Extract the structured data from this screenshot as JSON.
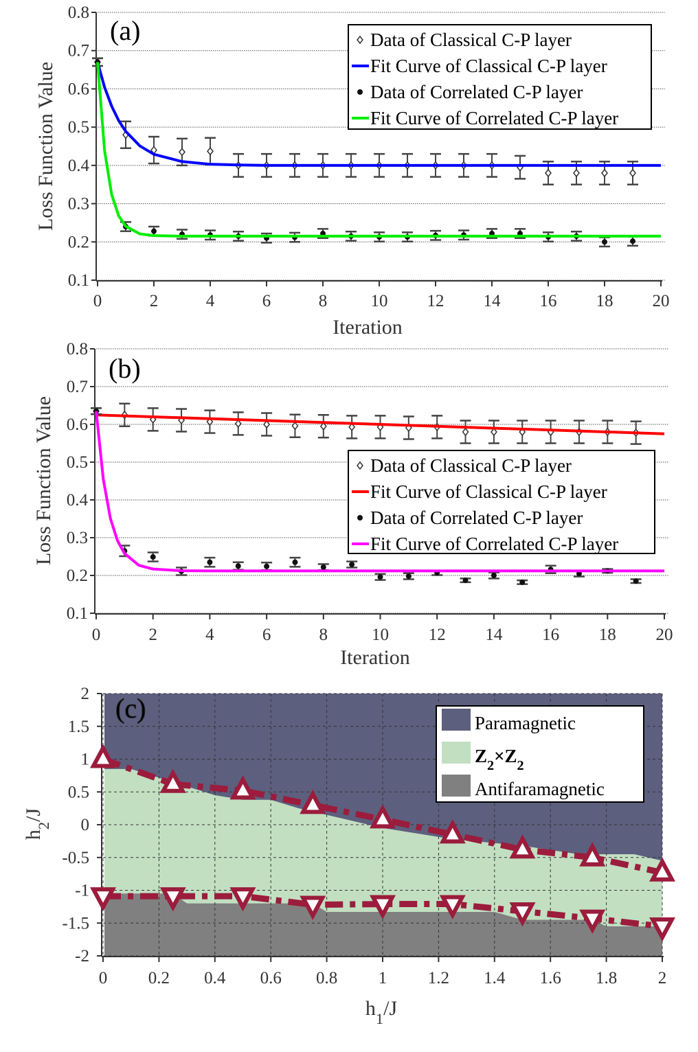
{
  "chart_data": [
    {
      "type": "scatter",
      "panel_label": "(a)",
      "xlabel": "Iteration",
      "ylabel": "Loss Function Value",
      "xlim": [
        0,
        20
      ],
      "ylim": [
        0.1,
        0.8
      ],
      "xticks": [
        0,
        2,
        4,
        6,
        8,
        10,
        12,
        14,
        16,
        18,
        20
      ],
      "yticks": [
        0.1,
        0.2,
        0.3,
        0.4,
        0.5,
        0.6,
        0.7,
        0.8
      ],
      "grid": "horizontal dotted",
      "legend_position": "top-right",
      "series": [
        {
          "name": "Data of Classical C-P layer",
          "kind": "points",
          "marker": "open-diamond",
          "x": [
            0,
            1,
            2,
            3,
            4,
            5,
            6,
            7,
            8,
            9,
            10,
            11,
            12,
            13,
            14,
            15,
            16,
            17,
            18,
            19
          ],
          "y": [
            0.67,
            0.48,
            0.44,
            0.435,
            0.437,
            0.4,
            0.4,
            0.4,
            0.4,
            0.4,
            0.4,
            0.4,
            0.4,
            0.4,
            0.4,
            0.395,
            0.38,
            0.38,
            0.38,
            0.38
          ],
          "err": [
            0.01,
            0.035,
            0.035,
            0.035,
            0.035,
            0.03,
            0.03,
            0.03,
            0.03,
            0.03,
            0.03,
            0.03,
            0.03,
            0.03,
            0.03,
            0.03,
            0.03,
            0.03,
            0.03,
            0.03
          ]
        },
        {
          "name": "Fit Curve of Classical C-P layer",
          "kind": "line",
          "color": "#0000ff",
          "x": [
            0,
            0.25,
            0.5,
            0.75,
            1,
            1.5,
            2,
            3,
            4,
            5,
            6,
            8,
            20
          ],
          "y": [
            0.67,
            0.604,
            0.555,
            0.517,
            0.489,
            0.451,
            0.429,
            0.41,
            0.403,
            0.401,
            0.4,
            0.4,
            0.4
          ]
        },
        {
          "name": "Data of Correlated C-P layer",
          "kind": "points",
          "marker": "filled-circle",
          "x": [
            0,
            1,
            2,
            3,
            4,
            5,
            6,
            7,
            8,
            9,
            10,
            11,
            12,
            13,
            14,
            15,
            16,
            17,
            18,
            19
          ],
          "y": [
            0.67,
            0.24,
            0.228,
            0.22,
            0.218,
            0.215,
            0.21,
            0.212,
            0.222,
            0.215,
            0.213,
            0.213,
            0.217,
            0.218,
            0.222,
            0.222,
            0.213,
            0.215,
            0.2,
            0.202
          ],
          "err": [
            0.01,
            0.012,
            0.012,
            0.012,
            0.012,
            0.012,
            0.012,
            0.012,
            0.012,
            0.012,
            0.012,
            0.012,
            0.012,
            0.012,
            0.012,
            0.012,
            0.012,
            0.012,
            0.012,
            0.012
          ]
        },
        {
          "name": "Fit Curve of Correlated C-P layer",
          "kind": "line",
          "color": "#00ee00",
          "x": [
            0,
            0.25,
            0.5,
            0.75,
            1,
            1.5,
            2,
            3,
            20
          ],
          "y": [
            0.67,
            0.438,
            0.324,
            0.268,
            0.241,
            0.221,
            0.2165,
            0.215,
            0.215
          ]
        }
      ]
    },
    {
      "type": "scatter",
      "panel_label": "(b)",
      "xlabel": "Iteration",
      "ylabel": "Loss Function Value",
      "xlim": [
        0,
        20
      ],
      "ylim": [
        0.1,
        0.8
      ],
      "xticks": [
        0,
        2,
        4,
        6,
        8,
        10,
        12,
        14,
        16,
        18,
        20
      ],
      "yticks": [
        0.1,
        0.2,
        0.3,
        0.4,
        0.5,
        0.6,
        0.7,
        0.8
      ],
      "grid": "horizontal dotted",
      "legend_position": "center-right",
      "series": [
        {
          "name": "Data of Classical C-P layer",
          "kind": "points",
          "marker": "open-diamond",
          "x": [
            0,
            1,
            2,
            3,
            4,
            5,
            6,
            7,
            8,
            9,
            10,
            11,
            12,
            13,
            14,
            15,
            16,
            17,
            18,
            19
          ],
          "y": [
            0.635,
            0.625,
            0.613,
            0.611,
            0.607,
            0.602,
            0.6,
            0.596,
            0.595,
            0.593,
            0.593,
            0.591,
            0.593,
            0.58,
            0.58,
            0.58,
            0.58,
            0.58,
            0.58,
            0.578
          ],
          "err": [
            0.008,
            0.03,
            0.03,
            0.03,
            0.03,
            0.03,
            0.03,
            0.03,
            0.03,
            0.03,
            0.03,
            0.03,
            0.03,
            0.03,
            0.03,
            0.03,
            0.03,
            0.03,
            0.03,
            0.03
          ]
        },
        {
          "name": "Fit Curve of Classical C-P layer",
          "kind": "line",
          "color": "#ff0000",
          "x": [
            0,
            20
          ],
          "y": [
            0.625,
            0.575
          ]
        },
        {
          "name": "Data of Correlated C-P layer",
          "kind": "points",
          "marker": "filled-circle",
          "x": [
            0,
            1,
            2,
            3,
            4,
            5,
            6,
            7,
            8,
            9,
            10,
            11,
            12,
            13,
            14,
            15,
            16,
            17,
            18,
            19
          ],
          "y": [
            0.635,
            0.265,
            0.249,
            0.211,
            0.235,
            0.225,
            0.224,
            0.235,
            0.222,
            0.229,
            0.196,
            0.198,
            0.207,
            0.187,
            0.2,
            0.182,
            0.216,
            0.205,
            0.212,
            0.185
          ],
          "err": [
            0.008,
            0.014,
            0.012,
            0.01,
            0.012,
            0.01,
            0.01,
            0.012,
            0.008,
            0.008,
            0.008,
            0.008,
            0.006,
            0.005,
            0.008,
            0.005,
            0.01,
            0.008,
            0.005,
            0.005
          ]
        },
        {
          "name": "Fit Curve of Correlated C-P layer",
          "kind": "line",
          "color": "#ff00ff",
          "x": [
            0,
            0.25,
            0.5,
            0.75,
            1,
            1.5,
            2,
            3,
            4,
            20
          ],
          "y": [
            0.635,
            0.455,
            0.351,
            0.292,
            0.258,
            0.227,
            0.217,
            0.2125,
            0.212,
            0.212
          ]
        }
      ]
    },
    {
      "type": "area",
      "panel_label": "(c)",
      "xlabel": "h_1/J",
      "ylabel": "h_2/J",
      "xlim": [
        0,
        2
      ],
      "ylim": [
        -2,
        2
      ],
      "xticks": [
        0,
        0.2,
        0.4,
        0.6,
        0.8,
        1,
        1.2,
        1.4,
        1.6,
        1.8,
        2
      ],
      "yticks": [
        -2,
        -1.5,
        -1,
        -0.5,
        0,
        0.5,
        1,
        1.5,
        2
      ],
      "grid": "dashed",
      "legend_position": "top-right",
      "regions": [
        {
          "name": "Paramagnetic",
          "color": "#5d5f7e"
        },
        {
          "name": "Z_2×Z_2",
          "color": "#c2dfc2"
        },
        {
          "name": "Antifaramagnetic",
          "color": "#808080"
        }
      ],
      "upper_boundary": {
        "x": [
          0,
          0.1,
          0.25,
          0.4,
          0.5,
          0.6,
          0.7,
          1.0,
          1.25,
          1.5,
          1.7,
          1.9,
          2
        ],
        "y": [
          0.85,
          0.85,
          0.65,
          0.45,
          0.38,
          0.38,
          0.25,
          -0.05,
          -0.22,
          -0.32,
          -0.45,
          -0.45,
          -0.55
        ]
      },
      "lower_boundary": {
        "x": [
          0,
          0.25,
          0.3,
          0.75,
          0.8,
          1.4,
          1.5,
          1.75,
          1.8,
          2
        ],
        "y": [
          -1.05,
          -1.05,
          -1.2,
          -1.2,
          -1.33,
          -1.33,
          -1.45,
          -1.45,
          -1.55,
          -1.55
        ]
      },
      "series": [
        {
          "kind": "dashdot-markers",
          "marker": "triangle-up",
          "color": "#9b1c3c",
          "x": [
            0,
            0.25,
            0.5,
            0.75,
            1,
            1.25,
            1.5,
            1.75,
            2
          ],
          "y": [
            1.0,
            0.62,
            0.52,
            0.3,
            0.08,
            -0.15,
            -0.38,
            -0.5,
            -0.73
          ]
        },
        {
          "kind": "dashdot-markers",
          "marker": "triangle-down",
          "color": "#9b1c3c",
          "x": [
            0,
            0.25,
            0.5,
            0.75,
            1,
            1.25,
            1.5,
            1.75,
            2
          ],
          "y": [
            -1.09,
            -1.09,
            -1.09,
            -1.22,
            -1.21,
            -1.21,
            -1.32,
            -1.43,
            -1.55
          ]
        }
      ]
    }
  ]
}
